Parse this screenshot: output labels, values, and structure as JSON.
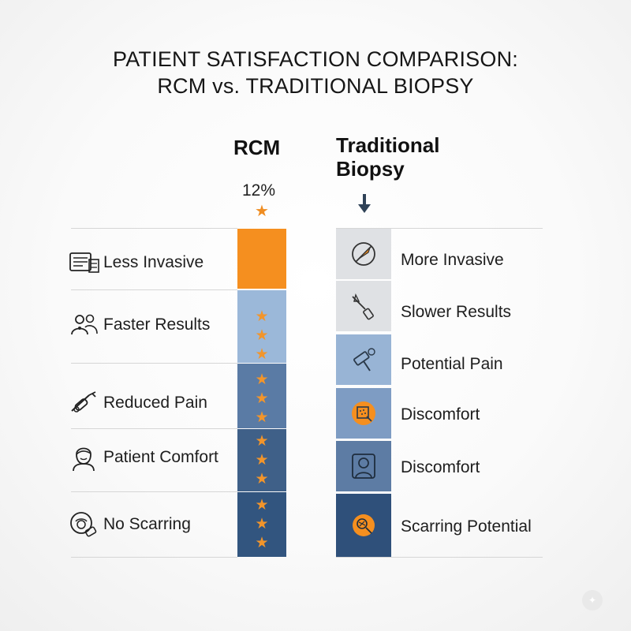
{
  "title": {
    "line1": "PATIENT SATISFACTION COMPARISON:",
    "line2": "RCM vs. TRADITIONAL BIOPSY"
  },
  "rcm": {
    "header": "RCM",
    "percent": "12%",
    "items": [
      {
        "label": "Less Invasive",
        "icon": "document-icon",
        "stars": 0
      },
      {
        "label": "Faster Results",
        "icon": "people-icon",
        "stars": 3
      },
      {
        "label": "Reduced Pain",
        "icon": "syringe-icon",
        "stars": 3
      },
      {
        "label": "Patient Comfort",
        "icon": "patient-face-icon",
        "stars": 3
      },
      {
        "label": "No Scarring",
        "icon": "face-bandage-icon",
        "stars": 3
      }
    ]
  },
  "traditional": {
    "header_line1": "Traditional",
    "header_line2": "Biopsy",
    "items": [
      {
        "label": "More Invasive",
        "icon": "no-scalpel-icon"
      },
      {
        "label": "Slower Results",
        "icon": "biopsy-tool-icon"
      },
      {
        "label": "Potential Pain",
        "icon": "hammer-icon"
      },
      {
        "label": "Discomfort",
        "icon": "bandage-icon"
      },
      {
        "label": "Discomfort",
        "icon": "patient-silhouette-icon"
      },
      {
        "label": "Scarring Potential",
        "icon": "scar-icon"
      }
    ]
  },
  "colors": {
    "orange": "#f58f1f",
    "star": "#f2952b",
    "light_blue": "#9bb8d9",
    "mid_blue": "#6585ae",
    "dark_blue": "#45658e",
    "navy": "#30527c",
    "light_gray": "#dfe1e4",
    "dark_text": "#161616"
  }
}
